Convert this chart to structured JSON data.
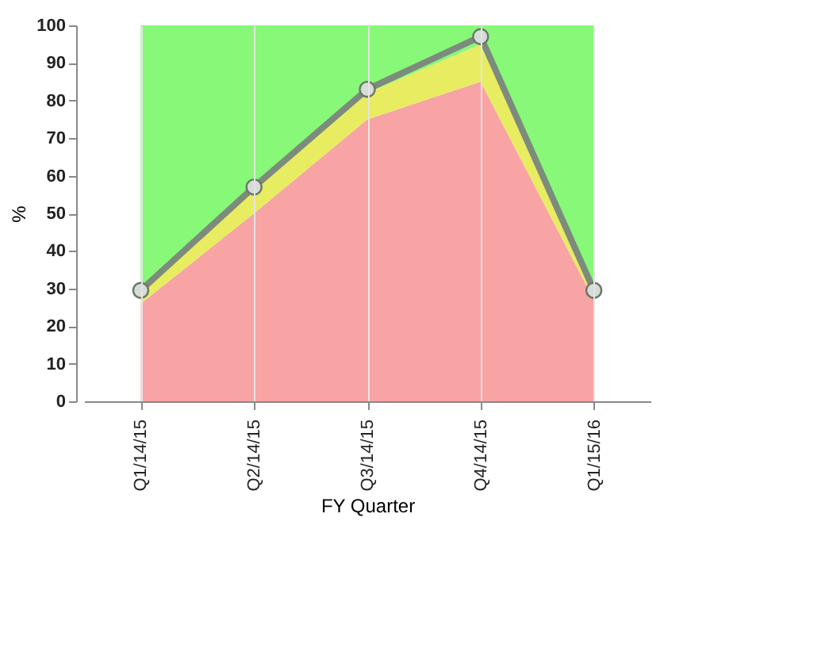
{
  "chart_data": {
    "type": "area",
    "stacked": true,
    "xlabel": "FY Quarter",
    "ylabel": "%",
    "categories": [
      "Q1/14/15",
      "Q2/14/15",
      "Q3/14/15",
      "Q4/14/15",
      "Q1/15/16"
    ],
    "series": [
      {
        "color": "#f8a4a4",
        "values": [
          26,
          50,
          75,
          85,
          27
        ]
      },
      {
        "color": "#e8ec60",
        "values": [
          3,
          6,
          7,
          10,
          2
        ]
      },
      {
        "color": "#88f878",
        "values": [
          71,
          44,
          18,
          5,
          71
        ]
      },
      {
        "type": "line",
        "marker": "circle",
        "color": "#7d8b7d",
        "values": [
          29.5,
          57,
          83,
          97,
          29.5
        ]
      }
    ],
    "ylim": [
      0,
      100
    ],
    "yticks": [
      0,
      10,
      20,
      30,
      40,
      50,
      60,
      70,
      80,
      90,
      100
    ],
    "grid": "x",
    "legend": false
  }
}
